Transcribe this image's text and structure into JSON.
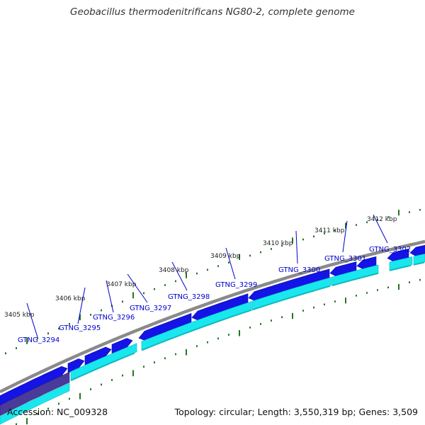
{
  "title": "Geobacillus thermodenitrificans NG80-2, complete genome",
  "accession": "Accession: NC_009328",
  "summary": "Topology: circular; Length: 3,550,319 bp; Genes: 3,509",
  "colors": {
    "backbone": "#8a8a8a",
    "forward_cds": "#1414e6",
    "reverse_cds": "#18e8ee",
    "reverse_cds_edge": "#10b8be",
    "dark_feature": "#4a3a9a",
    "tick": "#227722",
    "label_line": "#0000cc"
  },
  "kbp_labels": [
    "3405 kbp",
    "3406 kbp",
    "3407 kbp",
    "3408 kbp",
    "3409 kbp",
    "3410 kbp",
    "3411 kbp",
    "3412 kbp"
  ],
  "genes": [
    "GTNG_3294",
    "GTNG_3295",
    "GTNG_3296",
    "GTNG_3297",
    "GTNG_3298",
    "GTNG_3299",
    "GTNG_3300",
    "GTNG_3301",
    "GTNG_3302"
  ]
}
